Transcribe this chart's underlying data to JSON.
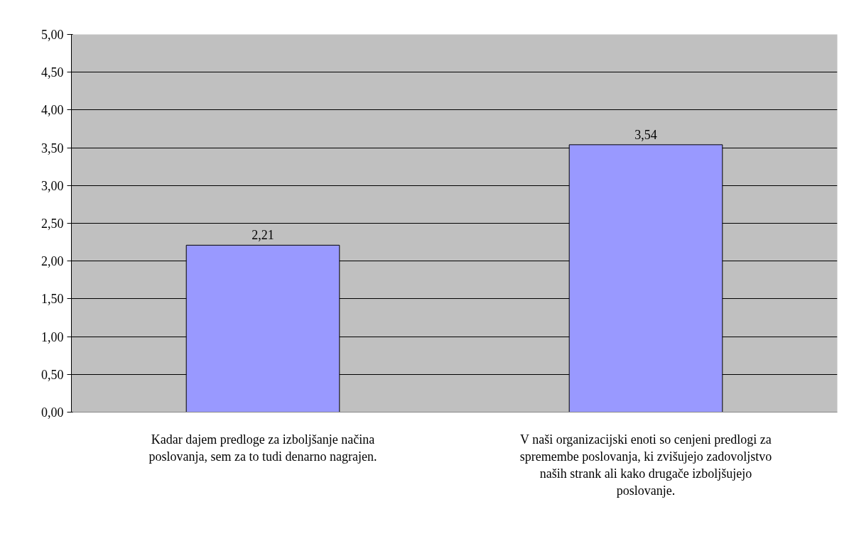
{
  "chart_data": {
    "type": "bar",
    "categories": [
      "Kadar dajem predloge za izboljšanje načina poslovanja, sem za to tudi denarno nagrajen.",
      "V naši organizacijski enoti so cenjeni predlogi za spremembe poslovanja, ki zvišujejo zadovoljstvo naših strank ali kako drugače izboljšujejo poslovanje."
    ],
    "values": [
      2.21,
      3.54
    ],
    "value_labels": [
      "2,21",
      "3,54"
    ],
    "color": "#9999ff",
    "ylim": [
      0,
      5
    ],
    "yticks": [
      {
        "value": 0,
        "label": "0,00"
      },
      {
        "value": 0.5,
        "label": "0,50"
      },
      {
        "value": 1,
        "label": "1,00"
      },
      {
        "value": 1.5,
        "label": "1,50"
      },
      {
        "value": 2,
        "label": "2,00"
      },
      {
        "value": 2.5,
        "label": "2,50"
      },
      {
        "value": 3,
        "label": "3,00"
      },
      {
        "value": 3.5,
        "label": "3,50"
      },
      {
        "value": 4,
        "label": "4,00"
      },
      {
        "value": 4.5,
        "label": "4,50"
      },
      {
        "value": 5,
        "label": "5,00"
      }
    ],
    "grid": "y"
  }
}
